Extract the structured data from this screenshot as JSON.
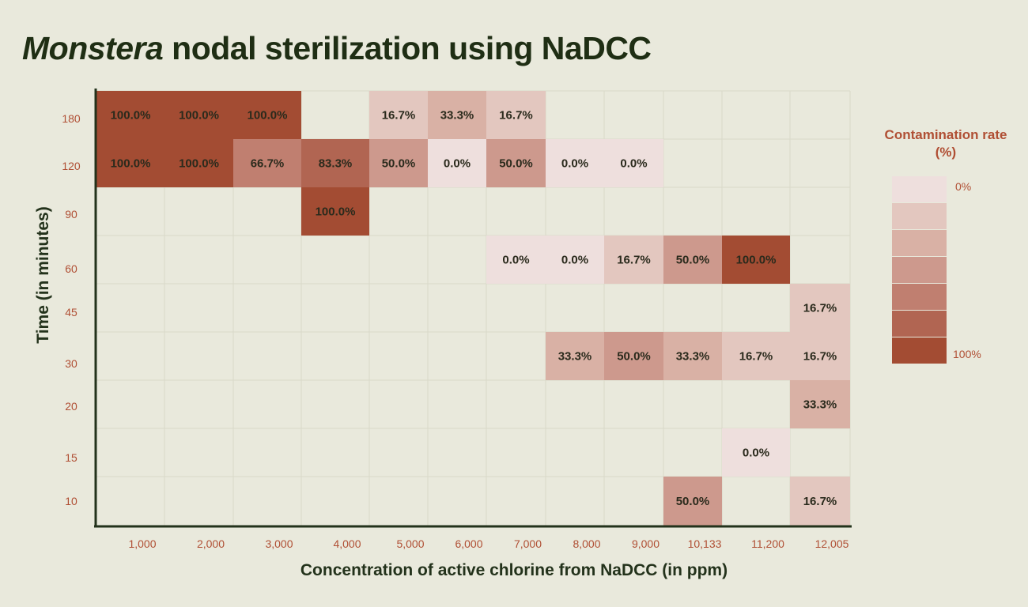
{
  "title": {
    "italic": "Monstera",
    "rest": " nodal sterilization using NaDCC"
  },
  "legend": {
    "title": "Contamination rate (%)",
    "min_label": "0%",
    "max_label": "100%"
  },
  "colors": {
    "background": "#e9e9dc",
    "text_dark": "#23321b",
    "tick_red": "#b04f34",
    "scale": [
      "#eedfdd",
      "#e3c7bf",
      "#d9b1a5",
      "#cd998d",
      "#c07f70",
      "#b16552",
      "#a34c33"
    ]
  },
  "chart_data": {
    "type": "heatmap",
    "xlabel": "Concentration of active chlorine from NaDCC (in ppm)",
    "ylabel": "Time (in minutes)",
    "x_categories": [
      "1,000",
      "2,000",
      "3,000",
      "4,000",
      "5,000",
      "6,000",
      "7,000",
      "8,000",
      "9,000",
      "10,133",
      "11,200",
      "12,005"
    ],
    "y_categories": [
      "180",
      "120",
      "90",
      "60",
      "45",
      "30",
      "20",
      "15",
      "10"
    ],
    "value_range": [
      0,
      100
    ],
    "unit": "%",
    "cells": [
      {
        "x": "1,000",
        "y": "180",
        "value": 100.0,
        "label": "100.0%"
      },
      {
        "x": "2,000",
        "y": "180",
        "value": 100.0,
        "label": "100.0%"
      },
      {
        "x": "3,000",
        "y": "180",
        "value": 100.0,
        "label": "100.0%"
      },
      {
        "x": "5,000",
        "y": "180",
        "value": 16.7,
        "label": "16.7%"
      },
      {
        "x": "6,000",
        "y": "180",
        "value": 33.3,
        "label": "33.3%"
      },
      {
        "x": "7,000",
        "y": "180",
        "value": 16.7,
        "label": "16.7%"
      },
      {
        "x": "1,000",
        "y": "120",
        "value": 100.0,
        "label": "100.0%"
      },
      {
        "x": "2,000",
        "y": "120",
        "value": 100.0,
        "label": "100.0%"
      },
      {
        "x": "3,000",
        "y": "120",
        "value": 66.7,
        "label": "66.7%"
      },
      {
        "x": "4,000",
        "y": "120",
        "value": 83.3,
        "label": "83.3%"
      },
      {
        "x": "5,000",
        "y": "120",
        "value": 50.0,
        "label": "50.0%"
      },
      {
        "x": "6,000",
        "y": "120",
        "value": 0.0,
        "label": "0.0%"
      },
      {
        "x": "7,000",
        "y": "120",
        "value": 50.0,
        "label": "50.0%"
      },
      {
        "x": "8,000",
        "y": "120",
        "value": 0.0,
        "label": "0.0%"
      },
      {
        "x": "9,000",
        "y": "120",
        "value": 0.0,
        "label": "0.0%"
      },
      {
        "x": "4,000",
        "y": "90",
        "value": 100.0,
        "label": "100.0%"
      },
      {
        "x": "7,000",
        "y": "60",
        "value": 0.0,
        "label": "0.0%"
      },
      {
        "x": "8,000",
        "y": "60",
        "value": 0.0,
        "label": "0.0%"
      },
      {
        "x": "9,000",
        "y": "60",
        "value": 16.7,
        "label": "16.7%"
      },
      {
        "x": "10,133",
        "y": "60",
        "value": 50.0,
        "label": "50.0%"
      },
      {
        "x": "11,200",
        "y": "60",
        "value": 100.0,
        "label": "100.0%"
      },
      {
        "x": "12,005",
        "y": "45",
        "value": 16.7,
        "label": "16.7%"
      },
      {
        "x": "8,000",
        "y": "30",
        "value": 33.3,
        "label": "33.3%"
      },
      {
        "x": "9,000",
        "y": "30",
        "value": 50.0,
        "label": "50.0%"
      },
      {
        "x": "10,133",
        "y": "30",
        "value": 33.3,
        "label": "33.3%"
      },
      {
        "x": "11,200",
        "y": "30",
        "value": 16.7,
        "label": "16.7%"
      },
      {
        "x": "12,005",
        "y": "30",
        "value": 16.7,
        "label": "16.7%"
      },
      {
        "x": "12,005",
        "y": "20",
        "value": 33.3,
        "label": "33.3%"
      },
      {
        "x": "11,200",
        "y": "15",
        "value": 0.0,
        "label": "0.0%"
      },
      {
        "x": "10,133",
        "y": "10",
        "value": 50.0,
        "label": "50.0%"
      },
      {
        "x": "12,005",
        "y": "10",
        "value": 16.7,
        "label": "16.7%"
      }
    ]
  }
}
